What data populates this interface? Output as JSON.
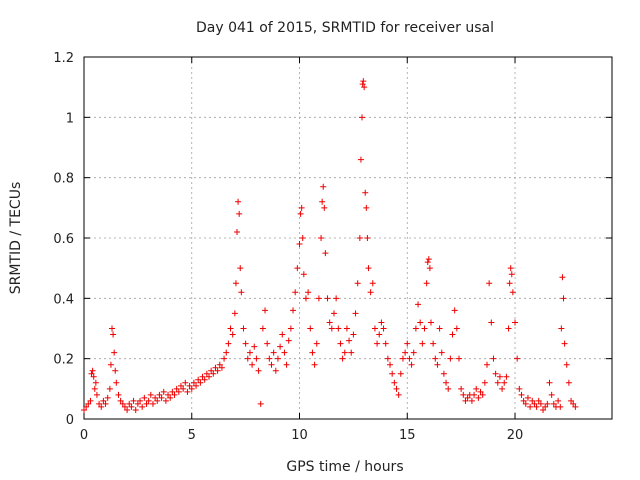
{
  "chart_data": {
    "type": "scatter",
    "title": "Day 041 of 2015, SRMTID for receiver usal",
    "xlabel": "GPS time / hours",
    "ylabel": "SRMTID / TECUs",
    "xlim": [
      0,
      24.5
    ],
    "ylim": [
      0,
      1.2
    ],
    "xticks": [
      0,
      5,
      10,
      15,
      20
    ],
    "xtick_labels": [
      "0",
      "5",
      "10",
      "15",
      "20"
    ],
    "yticks": [
      0,
      0.2,
      0.4,
      0.6,
      0.8,
      1,
      1.2
    ],
    "ytick_labels": [
      "0",
      "0.2",
      "0.4",
      "0.6",
      "0.8",
      "1",
      "1.2"
    ],
    "grid": true,
    "marker": "plus",
    "color": "#ee0000",
    "series": [
      {
        "name": "usal",
        "points": [
          [
            0.0,
            0.03
          ],
          [
            0.1,
            0.04
          ],
          [
            0.2,
            0.05
          ],
          [
            0.3,
            0.06
          ],
          [
            0.35,
            0.15
          ],
          [
            0.4,
            0.16
          ],
          [
            0.45,
            0.14
          ],
          [
            0.5,
            0.1
          ],
          [
            0.55,
            0.12
          ],
          [
            0.6,
            0.08
          ],
          [
            0.7,
            0.05
          ],
          [
            0.8,
            0.04
          ],
          [
            0.9,
            0.06
          ],
          [
            1.0,
            0.05
          ],
          [
            1.1,
            0.07
          ],
          [
            1.2,
            0.1
          ],
          [
            1.25,
            0.18
          ],
          [
            1.3,
            0.3
          ],
          [
            1.35,
            0.28
          ],
          [
            1.4,
            0.22
          ],
          [
            1.45,
            0.16
          ],
          [
            1.5,
            0.12
          ],
          [
            1.6,
            0.08
          ],
          [
            1.7,
            0.06
          ],
          [
            1.8,
            0.05
          ],
          [
            1.9,
            0.04
          ],
          [
            2.0,
            0.03
          ],
          [
            2.1,
            0.05
          ],
          [
            2.2,
            0.04
          ],
          [
            2.3,
            0.06
          ],
          [
            2.4,
            0.03
          ],
          [
            2.5,
            0.05
          ],
          [
            2.6,
            0.06
          ],
          [
            2.7,
            0.04
          ],
          [
            2.8,
            0.07
          ],
          [
            2.9,
            0.05
          ],
          [
            3.0,
            0.06
          ],
          [
            3.1,
            0.08
          ],
          [
            3.2,
            0.05
          ],
          [
            3.3,
            0.07
          ],
          [
            3.4,
            0.06
          ],
          [
            3.5,
            0.08
          ],
          [
            3.6,
            0.07
          ],
          [
            3.7,
            0.09
          ],
          [
            3.8,
            0.06
          ],
          [
            3.9,
            0.08
          ],
          [
            4.0,
            0.07
          ],
          [
            4.1,
            0.09
          ],
          [
            4.2,
            0.08
          ],
          [
            4.3,
            0.1
          ],
          [
            4.4,
            0.09
          ],
          [
            4.5,
            0.11
          ],
          [
            4.6,
            0.1
          ],
          [
            4.7,
            0.12
          ],
          [
            4.8,
            0.09
          ],
          [
            4.9,
            0.11
          ],
          [
            5.0,
            0.1
          ],
          [
            5.1,
            0.12
          ],
          [
            5.2,
            0.11
          ],
          [
            5.3,
            0.13
          ],
          [
            5.4,
            0.12
          ],
          [
            5.5,
            0.14
          ],
          [
            5.6,
            0.13
          ],
          [
            5.7,
            0.15
          ],
          [
            5.8,
            0.14
          ],
          [
            5.9,
            0.16
          ],
          [
            6.0,
            0.15
          ],
          [
            6.1,
            0.17
          ],
          [
            6.2,
            0.16
          ],
          [
            6.3,
            0.18
          ],
          [
            6.4,
            0.17
          ],
          [
            6.5,
            0.2
          ],
          [
            6.6,
            0.22
          ],
          [
            6.7,
            0.25
          ],
          [
            6.8,
            0.3
          ],
          [
            6.9,
            0.28
          ],
          [
            7.0,
            0.35
          ],
          [
            7.05,
            0.45
          ],
          [
            7.1,
            0.62
          ],
          [
            7.15,
            0.72
          ],
          [
            7.2,
            0.68
          ],
          [
            7.25,
            0.5
          ],
          [
            7.3,
            0.42
          ],
          [
            7.4,
            0.3
          ],
          [
            7.5,
            0.25
          ],
          [
            7.6,
            0.2
          ],
          [
            7.7,
            0.22
          ],
          [
            7.8,
            0.18
          ],
          [
            7.9,
            0.24
          ],
          [
            8.0,
            0.2
          ],
          [
            8.1,
            0.16
          ],
          [
            8.2,
            0.05
          ],
          [
            8.3,
            0.3
          ],
          [
            8.4,
            0.36
          ],
          [
            8.5,
            0.25
          ],
          [
            8.6,
            0.2
          ],
          [
            8.7,
            0.18
          ],
          [
            8.8,
            0.22
          ],
          [
            8.9,
            0.16
          ],
          [
            9.0,
            0.2
          ],
          [
            9.1,
            0.24
          ],
          [
            9.2,
            0.28
          ],
          [
            9.3,
            0.22
          ],
          [
            9.4,
            0.18
          ],
          [
            9.5,
            0.26
          ],
          [
            9.6,
            0.3
          ],
          [
            9.7,
            0.36
          ],
          [
            9.8,
            0.42
          ],
          [
            9.9,
            0.5
          ],
          [
            10.0,
            0.58
          ],
          [
            10.05,
            0.68
          ],
          [
            10.1,
            0.7
          ],
          [
            10.15,
            0.6
          ],
          [
            10.2,
            0.48
          ],
          [
            10.3,
            0.4
          ],
          [
            10.4,
            0.42
          ],
          [
            10.5,
            0.3
          ],
          [
            10.6,
            0.22
          ],
          [
            10.7,
            0.18
          ],
          [
            10.8,
            0.25
          ],
          [
            10.9,
            0.4
          ],
          [
            11.0,
            0.6
          ],
          [
            11.05,
            0.72
          ],
          [
            11.1,
            0.77
          ],
          [
            11.15,
            0.7
          ],
          [
            11.2,
            0.55
          ],
          [
            11.3,
            0.4
          ],
          [
            11.4,
            0.32
          ],
          [
            11.5,
            0.3
          ],
          [
            11.6,
            0.35
          ],
          [
            11.7,
            0.4
          ],
          [
            11.8,
            0.3
          ],
          [
            11.9,
            0.25
          ],
          [
            12.0,
            0.2
          ],
          [
            12.1,
            0.22
          ],
          [
            12.2,
            0.3
          ],
          [
            12.3,
            0.26
          ],
          [
            12.4,
            0.22
          ],
          [
            12.5,
            0.28
          ],
          [
            12.6,
            0.35
          ],
          [
            12.7,
            0.45
          ],
          [
            12.8,
            0.6
          ],
          [
            12.85,
            0.86
          ],
          [
            12.9,
            1.0
          ],
          [
            12.93,
            1.11
          ],
          [
            12.96,
            1.12
          ],
          [
            13.0,
            1.1
          ],
          [
            13.05,
            0.75
          ],
          [
            13.1,
            0.7
          ],
          [
            13.15,
            0.6
          ],
          [
            13.2,
            0.5
          ],
          [
            13.3,
            0.42
          ],
          [
            13.4,
            0.45
          ],
          [
            13.5,
            0.3
          ],
          [
            13.6,
            0.25
          ],
          [
            13.7,
            0.28
          ],
          [
            13.8,
            0.32
          ],
          [
            13.9,
            0.3
          ],
          [
            14.0,
            0.25
          ],
          [
            14.1,
            0.2
          ],
          [
            14.2,
            0.18
          ],
          [
            14.3,
            0.15
          ],
          [
            14.4,
            0.12
          ],
          [
            14.5,
            0.1
          ],
          [
            14.6,
            0.08
          ],
          [
            14.7,
            0.15
          ],
          [
            14.8,
            0.2
          ],
          [
            14.9,
            0.22
          ],
          [
            15.0,
            0.25
          ],
          [
            15.1,
            0.2
          ],
          [
            15.2,
            0.18
          ],
          [
            15.3,
            0.22
          ],
          [
            15.4,
            0.3
          ],
          [
            15.5,
            0.38
          ],
          [
            15.6,
            0.32
          ],
          [
            15.7,
            0.25
          ],
          [
            15.8,
            0.3
          ],
          [
            15.9,
            0.45
          ],
          [
            15.95,
            0.52
          ],
          [
            16.0,
            0.53
          ],
          [
            16.05,
            0.5
          ],
          [
            16.1,
            0.32
          ],
          [
            16.2,
            0.25
          ],
          [
            16.3,
            0.2
          ],
          [
            16.4,
            0.18
          ],
          [
            16.5,
            0.3
          ],
          [
            16.6,
            0.22
          ],
          [
            16.7,
            0.15
          ],
          [
            16.8,
            0.12
          ],
          [
            16.9,
            0.1
          ],
          [
            17.0,
            0.2
          ],
          [
            17.1,
            0.28
          ],
          [
            17.2,
            0.36
          ],
          [
            17.3,
            0.3
          ],
          [
            17.4,
            0.2
          ],
          [
            17.5,
            0.1
          ],
          [
            17.6,
            0.08
          ],
          [
            17.7,
            0.06
          ],
          [
            17.8,
            0.07
          ],
          [
            17.9,
            0.08
          ],
          [
            18.0,
            0.06
          ],
          [
            18.1,
            0.08
          ],
          [
            18.2,
            0.1
          ],
          [
            18.3,
            0.07
          ],
          [
            18.4,
            0.09
          ],
          [
            18.5,
            0.08
          ],
          [
            18.6,
            0.12
          ],
          [
            18.7,
            0.18
          ],
          [
            18.8,
            0.45
          ],
          [
            18.9,
            0.32
          ],
          [
            19.0,
            0.2
          ],
          [
            19.1,
            0.15
          ],
          [
            19.2,
            0.12
          ],
          [
            19.3,
            0.14
          ],
          [
            19.4,
            0.1
          ],
          [
            19.5,
            0.12
          ],
          [
            19.6,
            0.14
          ],
          [
            19.7,
            0.3
          ],
          [
            19.75,
            0.45
          ],
          [
            19.8,
            0.5
          ],
          [
            19.85,
            0.48
          ],
          [
            19.9,
            0.42
          ],
          [
            20.0,
            0.32
          ],
          [
            20.1,
            0.2
          ],
          [
            20.2,
            0.1
          ],
          [
            20.3,
            0.08
          ],
          [
            20.4,
            0.06
          ],
          [
            20.5,
            0.05
          ],
          [
            20.6,
            0.07
          ],
          [
            20.7,
            0.04
          ],
          [
            20.8,
            0.06
          ],
          [
            20.9,
            0.05
          ],
          [
            21.0,
            0.04
          ],
          [
            21.1,
            0.06
          ],
          [
            21.2,
            0.05
          ],
          [
            21.3,
            0.03
          ],
          [
            21.4,
            0.04
          ],
          [
            21.5,
            0.05
          ],
          [
            21.6,
            0.12
          ],
          [
            21.7,
            0.08
          ],
          [
            21.8,
            0.05
          ],
          [
            21.9,
            0.04
          ],
          [
            22.0,
            0.06
          ],
          [
            22.1,
            0.04
          ],
          [
            22.15,
            0.3
          ],
          [
            22.2,
            0.47
          ],
          [
            22.25,
            0.4
          ],
          [
            22.3,
            0.25
          ],
          [
            22.4,
            0.18
          ],
          [
            22.5,
            0.12
          ],
          [
            22.6,
            0.06
          ],
          [
            22.7,
            0.05
          ],
          [
            22.8,
            0.04
          ]
        ]
      }
    ]
  }
}
